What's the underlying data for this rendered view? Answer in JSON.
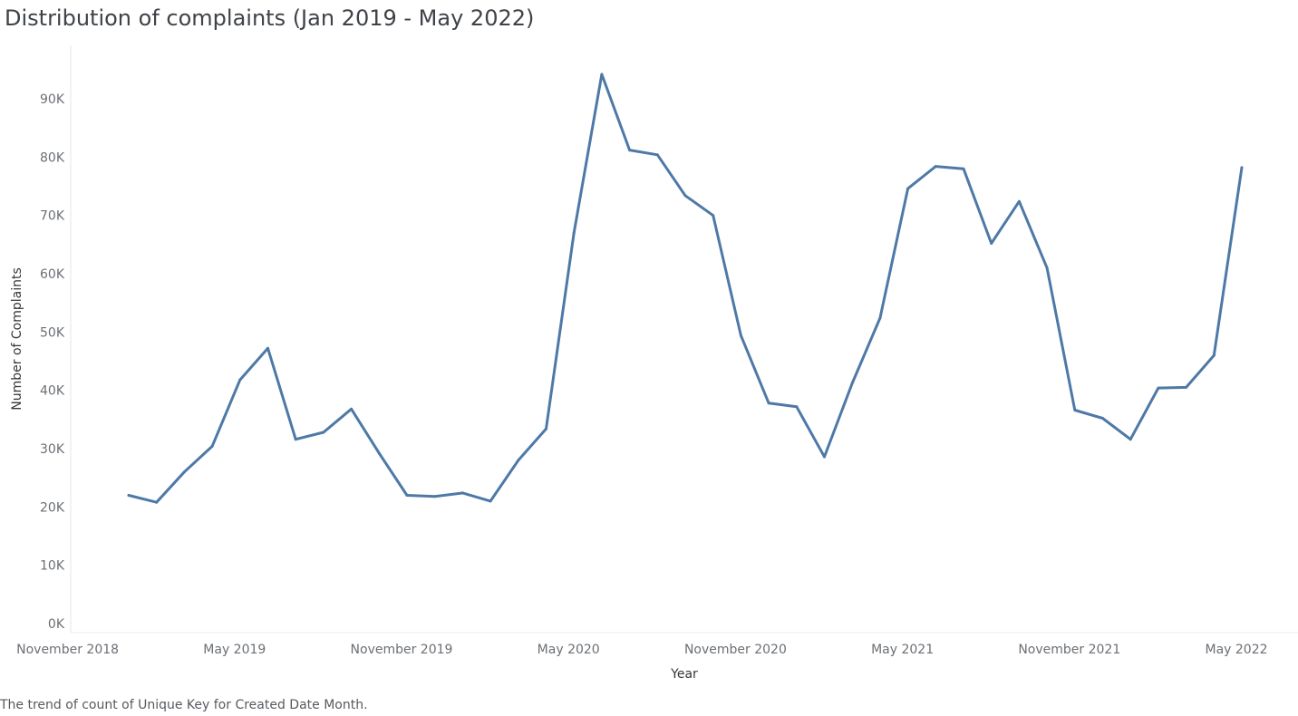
{
  "chart_data": {
    "type": "line",
    "title": "Distribution of complaints (Jan 2019 - May 2022)",
    "caption": "The trend of count of Unique Key for Created Date Month.",
    "xlabel": "Year",
    "ylabel": "Number of Complaints",
    "ylim": [
      0,
      95000
    ],
    "yticks": [
      0,
      10000,
      20000,
      30000,
      40000,
      50000,
      60000,
      70000,
      80000,
      90000
    ],
    "ytick_labels": [
      "0K",
      "10K",
      "20K",
      "30K",
      "40K",
      "50K",
      "60K",
      "70K",
      "80K",
      "90K"
    ],
    "xticks": [
      {
        "date": "2018-11",
        "label": "November 2018"
      },
      {
        "date": "2019-05",
        "label": "May 2019"
      },
      {
        "date": "2019-11",
        "label": "November 2019"
      },
      {
        "date": "2020-05",
        "label": "May 2020"
      },
      {
        "date": "2020-11",
        "label": "November 2020"
      },
      {
        "date": "2021-05",
        "label": "May 2021"
      },
      {
        "date": "2021-11",
        "label": "November 2021"
      },
      {
        "date": "2022-05",
        "label": "May 2022"
      }
    ],
    "x": [
      "2019-01",
      "2019-02",
      "2019-03",
      "2019-04",
      "2019-05",
      "2019-06",
      "2019-07",
      "2019-08",
      "2019-09",
      "2019-10",
      "2019-11",
      "2019-12",
      "2020-01",
      "2020-02",
      "2020-03",
      "2020-04",
      "2020-05",
      "2020-06",
      "2020-07",
      "2020-08",
      "2020-09",
      "2020-10",
      "2020-11",
      "2020-12",
      "2021-01",
      "2021-02",
      "2021-03",
      "2021-04",
      "2021-05",
      "2021-06",
      "2021-07",
      "2021-08",
      "2021-09",
      "2021-10",
      "2021-11",
      "2021-12",
      "2022-01",
      "2022-02",
      "2022-03",
      "2022-04",
      "2022-05"
    ],
    "series": [
      {
        "color": "#4e79a7",
        "values": [
          22000,
          20800,
          26000,
          30400,
          41800,
          47200,
          31600,
          32800,
          36800,
          29200,
          22000,
          21800,
          22400,
          21000,
          28000,
          33400,
          67000,
          94200,
          81200,
          80400,
          73400,
          70000,
          49400,
          37800,
          37200,
          28600,
          41200,
          52400,
          74600,
          78400,
          78000,
          65200,
          72400,
          61000,
          36600,
          35200,
          31600,
          40400,
          40500,
          46000,
          78200
        ]
      }
    ],
    "grid": false,
    "line_color": "#4e79a7"
  }
}
